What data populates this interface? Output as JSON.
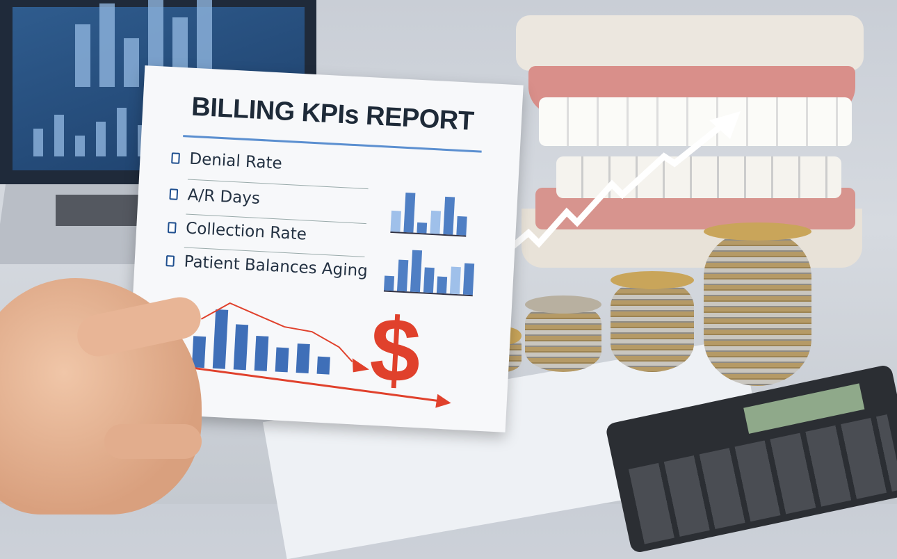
{
  "report": {
    "title": "BILLING KPIs REPORT",
    "kpis": [
      "Denial Rate",
      "A/R Days",
      "Collection Rate",
      "Patient Balances Aging"
    ],
    "symbol": "$"
  },
  "colors": {
    "accent_blue": "#4f7fc4",
    "dollar_red": "#e0412c",
    "arrow_white": "#ffffff"
  }
}
